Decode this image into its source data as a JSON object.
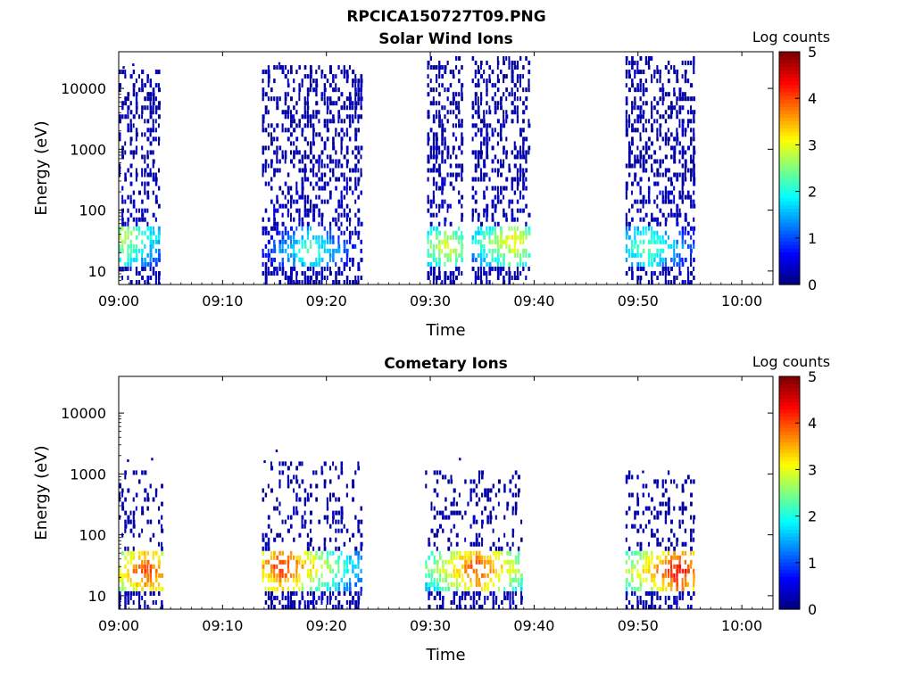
{
  "figure_title": "RPCICA150727T09.PNG",
  "chart_data": [
    {
      "type": "heatmap",
      "title": "Solar Wind Ions",
      "xlabel": "Time",
      "ylabel": "Energy (eV)",
      "y_scale": "log",
      "xlim_minutes": [
        0,
        63
      ],
      "ylim": [
        6,
        40000
      ],
      "x_ticks": [
        "09:00",
        "09:10",
        "09:20",
        "09:30",
        "09:40",
        "09:50",
        "10:00"
      ],
      "y_ticks": [
        "10",
        "100",
        "1000",
        "10000"
      ],
      "colorbar": {
        "label": "Log counts",
        "ticks": [
          "0",
          "1",
          "2",
          "3",
          "4",
          "5"
        ],
        "range": [
          0,
          5
        ],
        "colormap": "jet"
      },
      "bursts": [
        {
          "t_start": 0.0,
          "t_end": 4.0,
          "e_low": 300,
          "e_high": 15000,
          "core_t": 0.3,
          "core_e": 35,
          "core_level": 2.6,
          "low_band": true
        },
        {
          "t_start": 13.8,
          "t_end": 23.5,
          "e_low": 300,
          "e_high": 20000,
          "core_t": 18.3,
          "core_e": 22,
          "core_level": 2.0,
          "low_band": true
        },
        {
          "t_start": 29.7,
          "t_end": 33.0,
          "e_low": 300,
          "e_high": 25000,
          "core_t": 31.5,
          "core_e": 25,
          "core_level": 2.7,
          "low_band": true
        },
        {
          "t_start": 34.0,
          "t_end": 39.5,
          "e_low": 300,
          "e_high": 25000,
          "core_t": 37.8,
          "core_e": 30,
          "core_level": 2.9,
          "low_band": true
        },
        {
          "t_start": 48.8,
          "t_end": 55.5,
          "e_low": 300,
          "e_high": 25000,
          "core_t": 50.8,
          "core_e": 25,
          "core_level": 2.2,
          "low_band": true
        }
      ]
    },
    {
      "type": "heatmap",
      "title": "Cometary Ions",
      "xlabel": "Time",
      "ylabel": "Energy (eV)",
      "y_scale": "log",
      "xlim_minutes": [
        0,
        63
      ],
      "ylim": [
        6,
        40000
      ],
      "x_ticks": [
        "09:00",
        "09:10",
        "09:20",
        "09:30",
        "09:40",
        "09:50",
        "10:00"
      ],
      "y_ticks": [
        "10",
        "100",
        "1000",
        "10000"
      ],
      "colorbar": {
        "label": "Log counts",
        "ticks": [
          "0",
          "1",
          "2",
          "3",
          "4",
          "5"
        ],
        "range": [
          0,
          5
        ],
        "colormap": "jet"
      },
      "bursts": [
        {
          "t_start": 0.0,
          "t_end": 4.2,
          "e_low": 40,
          "e_high": 900,
          "core_t": 2.6,
          "core_e": 25,
          "core_level": 3.8,
          "low_band": true
        },
        {
          "t_start": 13.8,
          "t_end": 23.5,
          "e_low": 40,
          "e_high": 1200,
          "core_t": 15.7,
          "core_e": 30,
          "core_level": 3.9,
          "low_band": true
        },
        {
          "t_start": 29.5,
          "t_end": 38.8,
          "e_low": 40,
          "e_high": 900,
          "core_t": 34.5,
          "core_e": 28,
          "core_level": 3.8,
          "low_band": true
        },
        {
          "t_start": 48.8,
          "t_end": 55.3,
          "e_low": 40,
          "e_high": 900,
          "core_t": 53.7,
          "core_e": 25,
          "core_level": 4.1,
          "low_band": true
        }
      ]
    }
  ]
}
